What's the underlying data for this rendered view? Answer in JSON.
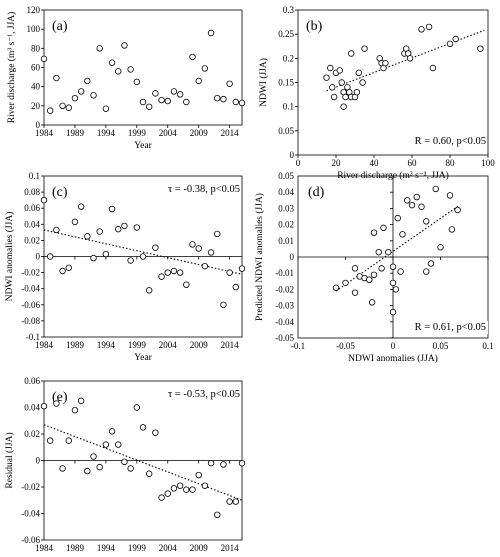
{
  "chart_data": [
    {
      "panel": "(a)",
      "type": "scatter",
      "xlabel": "Year",
      "ylabel": "River discharge (m³ s⁻¹, JJA)",
      "xlim": [
        1984,
        2016
      ],
      "ylim": [
        0,
        120
      ],
      "xticks": [
        1984,
        1989,
        1994,
        1999,
        2004,
        2009,
        2014
      ],
      "yticks": [
        0,
        20,
        40,
        60,
        80,
        100,
        120
      ],
      "grid": false,
      "points": [
        [
          1984,
          69
        ],
        [
          1985,
          15
        ],
        [
          1986,
          49
        ],
        [
          1987,
          20
        ],
        [
          1988,
          18
        ],
        [
          1989,
          28
        ],
        [
          1990,
          35
        ],
        [
          1991,
          46
        ],
        [
          1992,
          31
        ],
        [
          1993,
          80
        ],
        [
          1994,
          17
        ],
        [
          1995,
          65
        ],
        [
          1996,
          56
        ],
        [
          1997,
          83
        ],
        [
          1998,
          58
        ],
        [
          1999,
          45
        ],
        [
          2000,
          24
        ],
        [
          2001,
          19
        ],
        [
          2002,
          33
        ],
        [
          2003,
          26
        ],
        [
          2004,
          25
        ],
        [
          2005,
          35
        ],
        [
          2006,
          32
        ],
        [
          2007,
          24
        ],
        [
          2008,
          71
        ],
        [
          2009,
          46
        ],
        [
          2010,
          59
        ],
        [
          2011,
          96
        ],
        [
          2012,
          28
        ],
        [
          2013,
          27
        ],
        [
          2014,
          43
        ],
        [
          2015,
          24
        ],
        [
          2016,
          23
        ]
      ]
    },
    {
      "panel": "(b)",
      "type": "scatter",
      "xlabel": "River discharge (m³ s⁻¹, JJA)",
      "ylabel": "NDWI (JJA)",
      "xlim": [
        0,
        100
      ],
      "ylim": [
        0,
        0.3
      ],
      "xticks": [
        0,
        20,
        40,
        60,
        80,
        100
      ],
      "yticks": [
        0,
        0.05,
        0.1,
        0.15,
        0.2,
        0.25,
        0.3
      ],
      "grid": false,
      "annotation": "R = 0.60, p<0.05",
      "trendline": {
        "style": "dotted",
        "from": [
          15,
          0.133
        ],
        "to": [
          98,
          0.258
        ]
      },
      "points": [
        [
          15,
          0.16
        ],
        [
          17,
          0.18
        ],
        [
          18,
          0.14
        ],
        [
          19,
          0.12
        ],
        [
          20,
          0.17
        ],
        [
          22,
          0.175
        ],
        [
          23,
          0.15
        ],
        [
          24,
          0.13
        ],
        [
          24,
          0.1
        ],
        [
          25,
          0.12
        ],
        [
          26,
          0.14
        ],
        [
          27,
          0.13
        ],
        [
          28,
          0.21
        ],
        [
          28,
          0.12
        ],
        [
          30,
          0.12
        ],
        [
          31,
          0.13
        ],
        [
          32,
          0.17
        ],
        [
          34,
          0.15
        ],
        [
          35,
          0.22
        ],
        [
          43,
          0.2
        ],
        [
          44,
          0.19
        ],
        [
          45,
          0.18
        ],
        [
          46,
          0.19
        ],
        [
          56,
          0.21
        ],
        [
          57,
          0.22
        ],
        [
          58,
          0.21
        ],
        [
          59,
          0.2
        ],
        [
          65,
          0.26
        ],
        [
          69,
          0.265
        ],
        [
          71,
          0.18
        ],
        [
          80,
          0.23
        ],
        [
          83,
          0.24
        ],
        [
          96,
          0.22
        ]
      ]
    },
    {
      "panel": "(c)",
      "type": "scatter",
      "xlabel": "Year",
      "ylabel": "NDWI  anomalies (JJA)",
      "xlim": [
        1984,
        2016
      ],
      "ylim": [
        -0.1,
        0.1
      ],
      "xticks": [
        1984,
        1989,
        1994,
        1999,
        2004,
        2009,
        2014
      ],
      "yticks": [
        -0.1,
        -0.08,
        -0.06,
        -0.04,
        -0.02,
        0,
        0.02,
        0.04,
        0.06,
        0.08,
        0.1
      ],
      "grid": false,
      "annotation": "τ = -0.38, p<0.05",
      "trendline": {
        "style": "dotted",
        "from": [
          1984,
          0.033
        ],
        "to": [
          2016,
          -0.022
        ]
      },
      "points": [
        [
          1984,
          0.07
        ],
        [
          1985,
          0.0
        ],
        [
          1986,
          0.033
        ],
        [
          1987,
          -0.018
        ],
        [
          1988,
          -0.014
        ],
        [
          1989,
          0.043
        ],
        [
          1990,
          0.062
        ],
        [
          1991,
          0.025
        ],
        [
          1992,
          -0.002
        ],
        [
          1993,
          0.031
        ],
        [
          1994,
          0.003
        ],
        [
          1995,
          0.059
        ],
        [
          1996,
          0.034
        ],
        [
          1997,
          0.038
        ],
        [
          1998,
          -0.005
        ],
        [
          1999,
          0.036
        ],
        [
          2000,
          0.0
        ],
        [
          2001,
          -0.042
        ],
        [
          2002,
          0.011
        ],
        [
          2003,
          -0.025
        ],
        [
          2004,
          -0.02
        ],
        [
          2005,
          -0.018
        ],
        [
          2006,
          -0.02
        ],
        [
          2007,
          -0.035
        ],
        [
          2008,
          0.015
        ],
        [
          2009,
          0.01
        ],
        [
          2010,
          -0.012
        ],
        [
          2011,
          0.005
        ],
        [
          2012,
          0.028
        ],
        [
          2013,
          -0.06
        ],
        [
          2014,
          -0.02
        ],
        [
          2015,
          -0.038
        ],
        [
          2016,
          -0.015
        ]
      ]
    },
    {
      "panel": "(d)",
      "type": "scatter",
      "xlabel": "NDWI anomalies (JJA)",
      "ylabel": "Predicted NDWI anomalies (JJA)",
      "xlim": [
        -0.1,
        0.1
      ],
      "ylim": [
        -0.05,
        0.05
      ],
      "xticks": [
        -0.1,
        -0.05,
        0,
        0.05,
        0.1
      ],
      "yticks": [
        -0.05,
        -0.04,
        -0.03,
        -0.02,
        -0.01,
        0,
        0.01,
        0.02,
        0.03,
        0.04,
        0.05
      ],
      "grid": false,
      "axes_through_origin": true,
      "annotation": "R = 0.61, p<0.05",
      "trendline": {
        "style": "dotted",
        "from": [
          -0.06,
          -0.021
        ],
        "to": [
          0.07,
          0.032
        ]
      },
      "points": [
        [
          -0.06,
          -0.019
        ],
        [
          -0.05,
          -0.016
        ],
        [
          -0.04,
          -0.022
        ],
        [
          -0.04,
          -0.007
        ],
        [
          -0.035,
          -0.012
        ],
        [
          -0.03,
          -0.013
        ],
        [
          -0.025,
          -0.014
        ],
        [
          -0.022,
          -0.028
        ],
        [
          -0.02,
          -0.011
        ],
        [
          -0.02,
          0.015
        ],
        [
          -0.015,
          0.003
        ],
        [
          -0.012,
          -0.007
        ],
        [
          -0.01,
          0.018
        ],
        [
          -0.005,
          0.003
        ],
        [
          0.0,
          -0.006
        ],
        [
          0.0,
          -0.016
        ],
        [
          0.003,
          -0.02
        ],
        [
          0.0,
          -0.034
        ],
        [
          0.005,
          0.024
        ],
        [
          0.008,
          -0.009
        ],
        [
          0.01,
          0.014
        ],
        [
          0.015,
          0.035
        ],
        [
          0.02,
          0.032
        ],
        [
          0.025,
          0.037
        ],
        [
          0.03,
          0.031
        ],
        [
          0.035,
          -0.009
        ],
        [
          0.035,
          0.022
        ],
        [
          0.04,
          -0.004
        ],
        [
          0.045,
          0.042
        ],
        [
          0.05,
          0.006
        ],
        [
          0.06,
          0.038
        ],
        [
          0.062,
          0.017
        ],
        [
          0.068,
          0.029
        ]
      ]
    },
    {
      "panel": "(e)",
      "type": "scatter",
      "xlabel": "Year",
      "ylabel": "Residual (JJA)",
      "xlim": [
        1984,
        2016
      ],
      "ylim": [
        -0.06,
        0.06
      ],
      "xticks": [
        1984,
        1989,
        1994,
        1999,
        2004,
        2009,
        2014
      ],
      "yticks": [
        -0.06,
        -0.04,
        -0.02,
        0,
        0.02,
        0.04,
        0.06
      ],
      "grid": false,
      "annotation": "τ = -0.53, p<0.05",
      "trendline": {
        "style": "dotted",
        "from": [
          1984,
          0.027
        ],
        "to": [
          2016,
          -0.03
        ]
      },
      "points": [
        [
          1984,
          0.041
        ],
        [
          1985,
          0.015
        ],
        [
          1986,
          0.043
        ],
        [
          1987,
          -0.006
        ],
        [
          1988,
          0.015
        ],
        [
          1989,
          0.038
        ],
        [
          1990,
          0.045
        ],
        [
          1991,
          -0.008
        ],
        [
          1992,
          0.003
        ],
        [
          1993,
          -0.005
        ],
        [
          1994,
          0.012
        ],
        [
          1995,
          0.022
        ],
        [
          1996,
          0.012
        ],
        [
          1997,
          -0.001
        ],
        [
          1998,
          -0.006
        ],
        [
          1999,
          0.04
        ],
        [
          2000,
          0.025
        ],
        [
          2001,
          -0.01
        ],
        [
          2002,
          0.021
        ],
        [
          2003,
          -0.028
        ],
        [
          2004,
          -0.025
        ],
        [
          2005,
          -0.021
        ],
        [
          2006,
          -0.019
        ],
        [
          2007,
          -0.022
        ],
        [
          2008,
          -0.022
        ],
        [
          2009,
          -0.011
        ],
        [
          2010,
          -0.019
        ],
        [
          2011,
          -0.002
        ],
        [
          2012,
          -0.041
        ],
        [
          2013,
          -0.003
        ],
        [
          2014,
          -0.031
        ],
        [
          2015,
          -0.031
        ],
        [
          2016,
          -0.002
        ]
      ]
    }
  ]
}
